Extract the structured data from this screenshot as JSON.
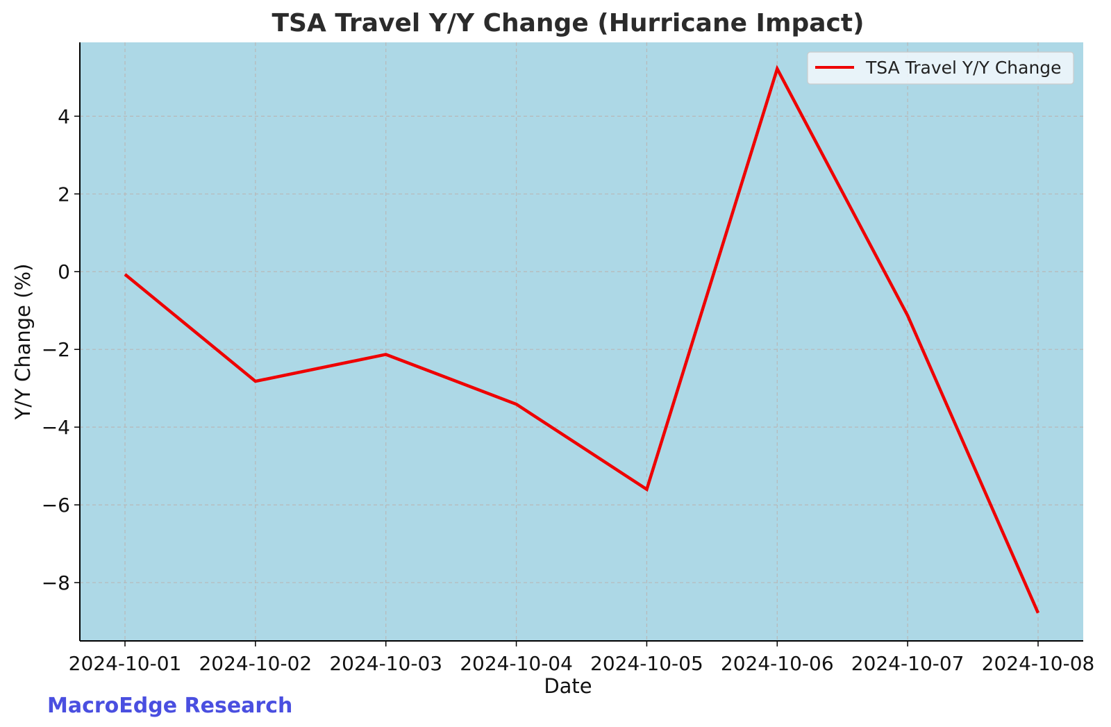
{
  "chart_data": {
    "type": "line",
    "title": "TSA Travel Y/Y Change (Hurricane Impact)",
    "xlabel": "Date",
    "ylabel": "Y/Y Change (%)",
    "x": [
      "2024-10-01",
      "2024-10-02",
      "2024-10-03",
      "2024-10-04",
      "2024-10-05",
      "2024-10-06",
      "2024-10-07",
      "2024-10-08"
    ],
    "series": [
      {
        "name": "TSA Travel Y/Y Change",
        "color": "#ee0000",
        "values": [
          -0.07,
          -2.82,
          -2.13,
          -3.41,
          -5.6,
          5.22,
          -1.13,
          -8.78
        ]
      }
    ],
    "ylim": [
      -9.5,
      5.9
    ],
    "yticks": [
      4,
      2,
      0,
      -2,
      -4,
      -6,
      -8
    ],
    "ytick_labels": [
      "4",
      "2",
      "0",
      "−2",
      "−4",
      "−6",
      "−8"
    ],
    "grid": true,
    "legend_position": "top-right",
    "background_color": "#add8e6"
  },
  "footer": {
    "watermark": "MacroEdge Research"
  }
}
